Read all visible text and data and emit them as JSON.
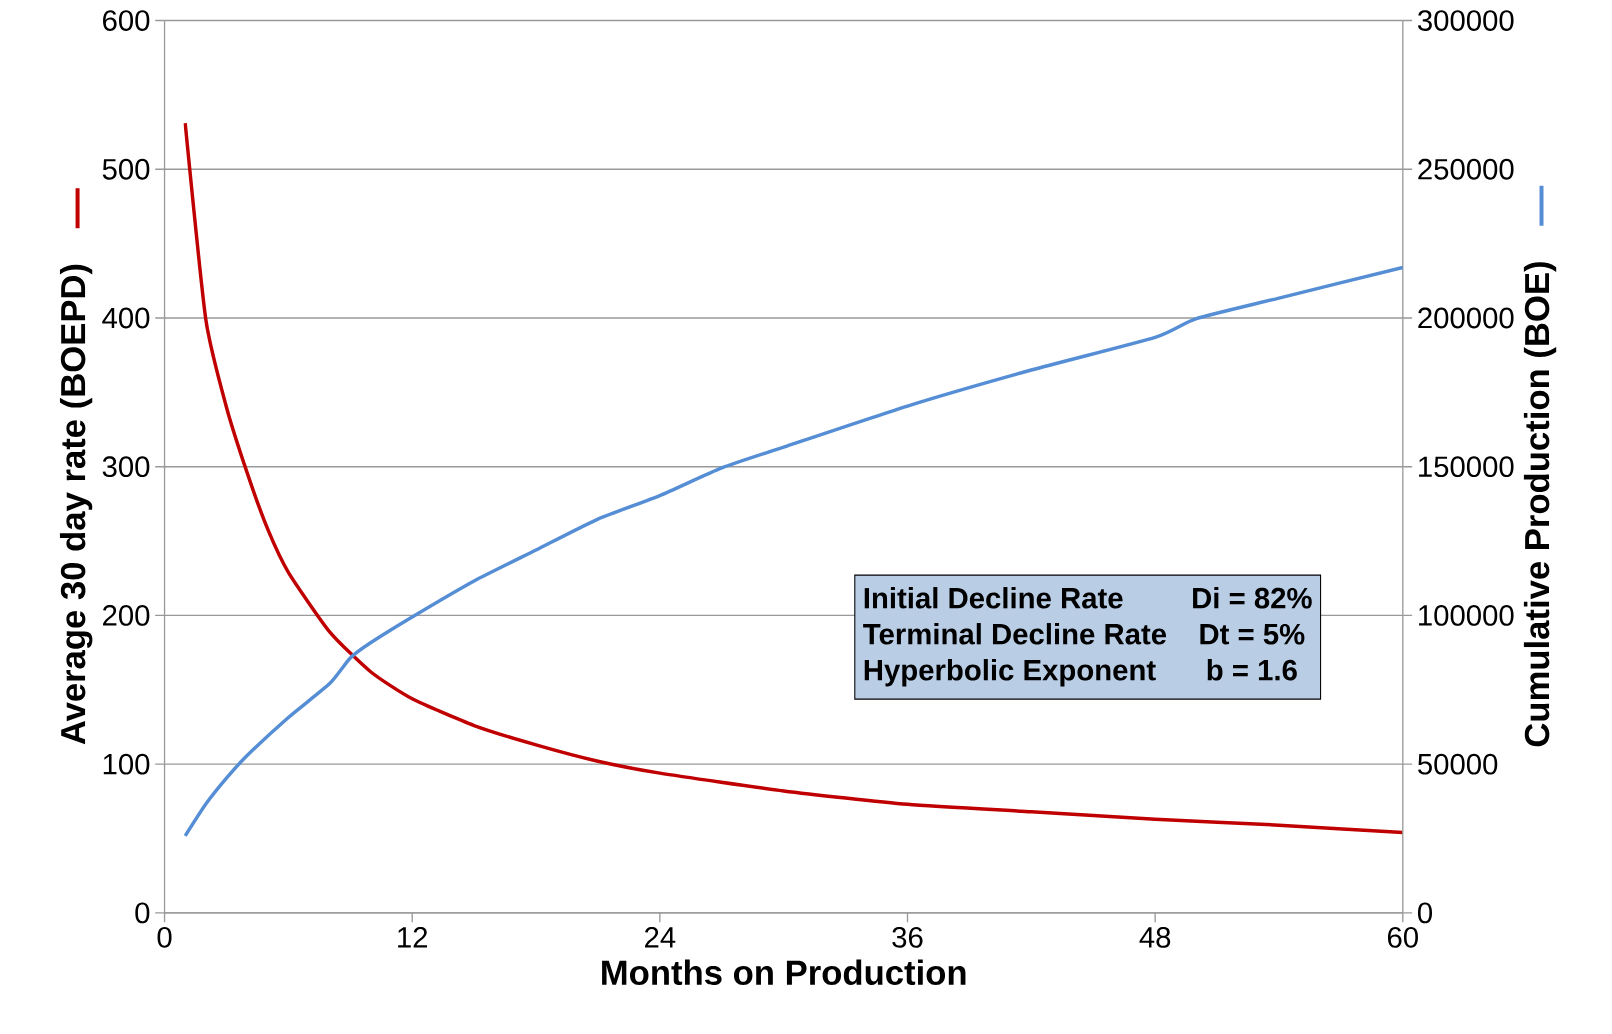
{
  "chart_data": {
    "type": "line",
    "xlabel": "Months on Production",
    "ylabel": "Average 30 day rate (BOEPD)",
    "y2label": "Cumulative Production (BOE)",
    "xlim": [
      0,
      60
    ],
    "xticks": [
      0,
      12,
      24,
      36,
      48,
      60
    ],
    "ylim": [
      0,
      600
    ],
    "yticks": [
      0,
      100,
      200,
      300,
      400,
      500,
      600
    ],
    "y2lim": [
      0,
      300000
    ],
    "y2ticks": [
      0,
      50000,
      100000,
      150000,
      200000,
      250000,
      300000
    ],
    "grid": "y",
    "line_style": "solid",
    "series": [
      {
        "color": "#c00000",
        "x": [
          1,
          2,
          3,
          4,
          5,
          6,
          8,
          10,
          12,
          15,
          18,
          21,
          24,
          30,
          36,
          42,
          48,
          54,
          60
        ],
        "values": [
          531,
          399,
          340,
          296,
          258,
          229,
          189,
          162,
          144,
          126,
          113,
          102,
          94,
          82,
          73,
          68,
          63,
          59,
          54
        ]
      },
      {
        "color": "#558ed5",
        "axis": "y2",
        "x": [
          1,
          2,
          3,
          4,
          6,
          8,
          9,
          10,
          12,
          15,
          18,
          21,
          24,
          27,
          30,
          36,
          42,
          48,
          50,
          54,
          60
        ],
        "values": [
          25900,
          36600,
          45300,
          52900,
          65700,
          77100,
          85700,
          90900,
          99500,
          111600,
          122000,
          132400,
          140300,
          149600,
          156600,
          170400,
          182500,
          193500,
          199800,
          206700,
          217000
        ]
      }
    ],
    "annotations": [
      "Initial Decline Rate",
      "Di = 82%",
      "Terminal Decline Rate",
      "Dt = 5%",
      "Hyperbolic Exponent",
      "b = 1.6"
    ]
  }
}
